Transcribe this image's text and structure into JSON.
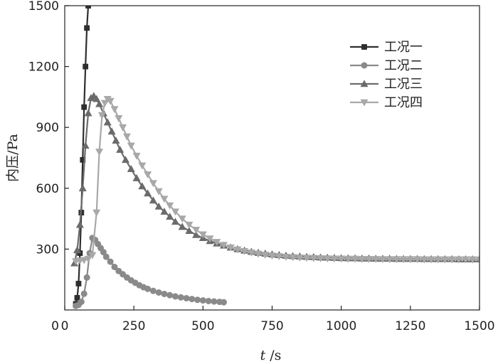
{
  "chart_data": {
    "type": "line",
    "xlabel_italic": "t",
    "xlabel_unit": " /s",
    "ylabel": "内压/Pa",
    "xlim": [
      0,
      1500
    ],
    "ylim": [
      0,
      1500
    ],
    "xticks": [
      0,
      250,
      500,
      750,
      1000,
      1250,
      1500
    ],
    "yticks": [
      300,
      600,
      900,
      1200,
      1500
    ],
    "grid": false,
    "legend_position": "top-right",
    "series": [
      {
        "name": "工况一",
        "color": "#2e2e2e",
        "marker": "square",
        "x": [
          40,
          45,
          50,
          55,
          60,
          65,
          70,
          75,
          80,
          85
        ],
        "y": [
          30,
          60,
          130,
          280,
          480,
          740,
          1000,
          1200,
          1390,
          1500
        ]
      },
      {
        "name": "工况二",
        "color": "#8a8a8a",
        "marker": "circle",
        "x": [
          40,
          50,
          60,
          70,
          80,
          90,
          100,
          110,
          120,
          130,
          140,
          150,
          165,
          180,
          195,
          210,
          225,
          240,
          255,
          270,
          285,
          300,
          320,
          340,
          360,
          380,
          400,
          420,
          440,
          460,
          480,
          500,
          520,
          540,
          560,
          575
        ],
        "y": [
          20,
          25,
          40,
          80,
          160,
          280,
          355,
          345,
          325,
          305,
          285,
          262,
          238,
          212,
          192,
          176,
          160,
          146,
          134,
          122,
          112,
          104,
          94,
          86,
          79,
          73,
          67,
          62,
          58,
          54,
          50,
          47,
          44,
          42,
          40,
          38
        ]
      },
      {
        "name": "工况三",
        "color": "#6b6b6b",
        "marker": "triangle-up",
        "x": [
          35,
          45,
          55,
          65,
          75,
          85,
          95,
          105,
          115,
          125,
          140,
          155,
          170,
          185,
          200,
          220,
          240,
          260,
          280,
          300,
          320,
          340,
          360,
          380,
          400,
          425,
          450,
          475,
          500,
          525,
          550,
          575,
          600,
          625,
          650,
          675,
          700,
          725,
          750,
          775,
          800,
          825,
          850,
          875,
          900,
          925,
          950,
          975,
          1000,
          1025,
          1050,
          1075,
          1100,
          1125,
          1150,
          1175,
          1200,
          1225,
          1250,
          1275,
          1300,
          1325,
          1350,
          1375,
          1400,
          1425,
          1450,
          1475,
          1500
        ],
        "y": [
          230,
          295,
          420,
          600,
          810,
          970,
          1045,
          1055,
          1040,
          1015,
          970,
          925,
          880,
          835,
          790,
          740,
          695,
          650,
          610,
          575,
          540,
          510,
          485,
          460,
          435,
          410,
          390,
          370,
          355,
          340,
          328,
          318,
          308,
          300,
          293,
          287,
          282,
          278,
          274,
          271,
          268,
          266,
          264,
          262,
          261,
          259,
          258,
          257,
          256,
          255,
          255,
          254,
          254,
          253,
          253,
          253,
          252,
          252,
          252,
          252,
          251,
          251,
          251,
          251,
          251,
          250,
          250,
          250,
          250
        ]
      },
      {
        "name": "工况四",
        "color": "#a8a8a8",
        "marker": "triangle-down",
        "x": [
          40,
          55,
          70,
          85,
          100,
          115,
          125,
          135,
          145,
          155,
          165,
          180,
          195,
          210,
          225,
          240,
          260,
          280,
          300,
          320,
          340,
          360,
          380,
          400,
          425,
          450,
          475,
          500,
          525,
          550,
          575,
          600,
          625,
          650,
          675,
          700,
          725,
          750,
          775,
          800,
          825,
          850,
          875,
          900,
          925,
          950,
          975,
          1000,
          1025,
          1050,
          1075,
          1100,
          1125,
          1150,
          1175,
          1200,
          1225,
          1250,
          1275,
          1300,
          1325,
          1350,
          1375,
          1400,
          1425,
          1450,
          1475,
          1500
        ],
        "y": [
          240,
          243,
          246,
          252,
          270,
          480,
          780,
          960,
          1020,
          1040,
          1030,
          990,
          945,
          900,
          855,
          810,
          760,
          712,
          668,
          625,
          585,
          548,
          515,
          485,
          450,
          420,
          395,
          372,
          352,
          335,
          320,
          308,
          298,
          290,
          283,
          277,
          272,
          268,
          265,
          262,
          260,
          258,
          257,
          256,
          255,
          254,
          253,
          253,
          252,
          252,
          251,
          251,
          251,
          250,
          250,
          250,
          250,
          250,
          250,
          249,
          249,
          249,
          249,
          249,
          249,
          249,
          249,
          248
        ]
      }
    ]
  }
}
